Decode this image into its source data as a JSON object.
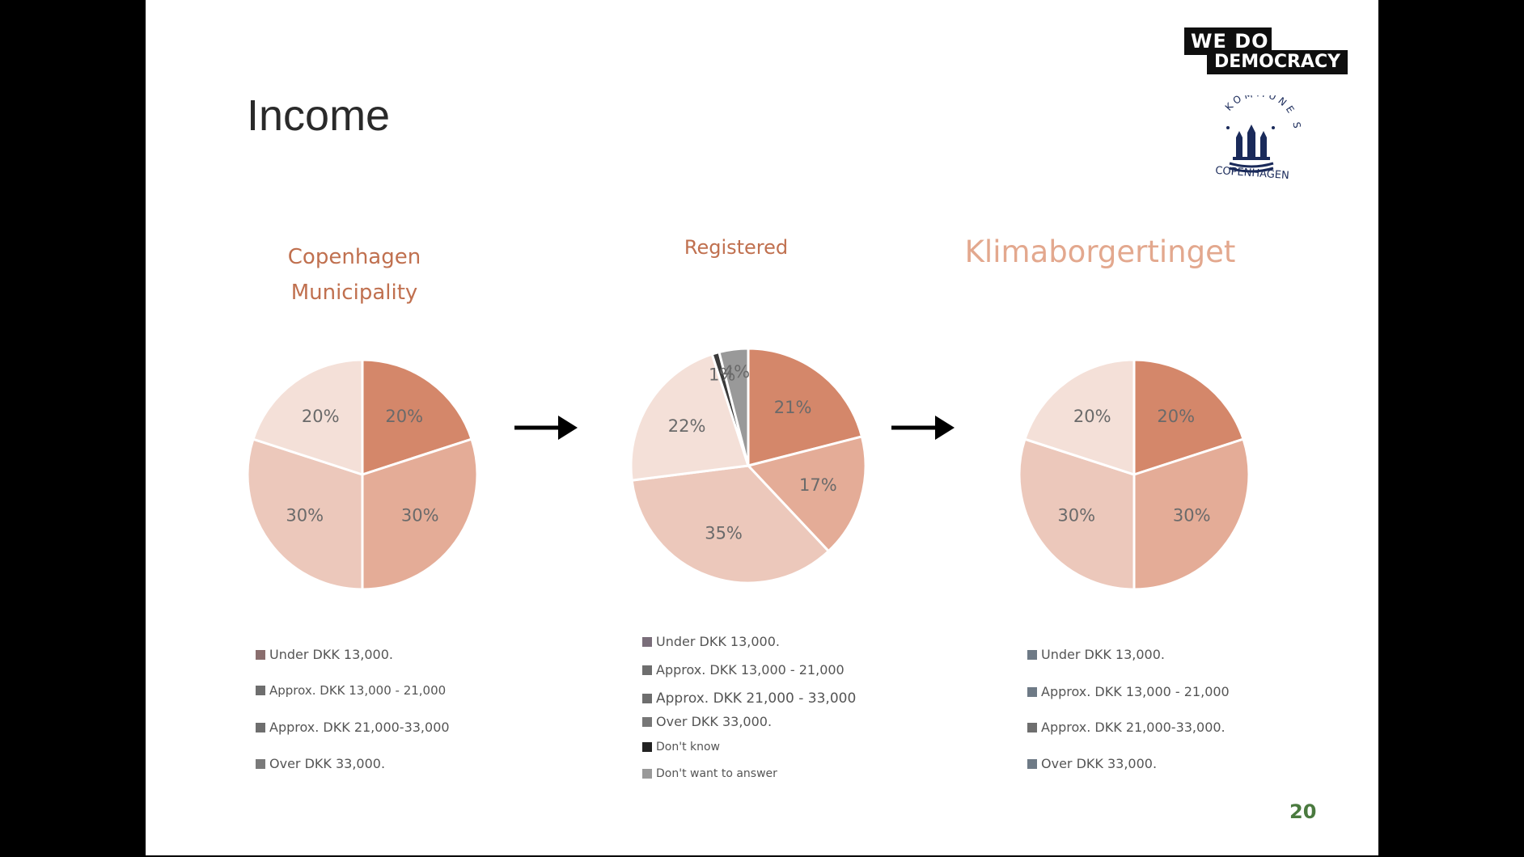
{
  "title": "Income",
  "logo": {
    "line1": "WE  DO",
    "line2": "DEMOCRACY"
  },
  "crest": {
    "arc_text": "KOMMUNE S",
    "label": "COPENHAGEN"
  },
  "page_number": "20",
  "colors": {
    "c1": "#d4876a",
    "c2": "#e4ac97",
    "c3": "#ecc8bb",
    "c4": "#f4e0d8",
    "dont_know": "#3a3a3a",
    "dont_answer": "#999999",
    "title_accent": "#c0704f",
    "page_number": "#4a7a3f"
  },
  "chart_data": [
    {
      "type": "pie",
      "title": "Copenhagen Municipality",
      "title_lines": [
        "Copenhagen",
        "Municipality"
      ],
      "categories": [
        "Under DKK 13,000.",
        "Approx. DKK 13,000 - 21,000",
        "Approx. DKK 21,000-33,000",
        "Over DKK 33,000."
      ],
      "values": [
        20,
        30,
        30,
        20
      ],
      "labels": [
        "20%",
        "30%",
        "30%",
        "20%"
      ],
      "slice_colors": [
        "#d4876a",
        "#e4ac97",
        "#ecc8bb",
        "#f4e0d8"
      ],
      "legend": [
        {
          "label": "Under DKK 13,000.",
          "swatch": "#8a6e6e"
        },
        {
          "label": "Approx. DKK 13,000 - 21,000",
          "swatch": "#6e6e6e"
        },
        {
          "label": "Approx. DKK 21,000-33,000",
          "swatch": "#6e6e6e"
        },
        {
          "label": "Over DKK 33,000.",
          "swatch": "#7a7a7a"
        }
      ]
    },
    {
      "type": "pie",
      "title": "Registered",
      "categories": [
        "Under DKK 13,000.",
        "Approx. DKK 13,000 - 21,000",
        "Approx. DKK 21,000 - 33,000",
        "Over DKK 33,000.",
        "Don't know",
        "Don't want to answer"
      ],
      "values": [
        21,
        17,
        35,
        22,
        1,
        4
      ],
      "labels": [
        "21%",
        "17%",
        "35%",
        "22%",
        "1%",
        "4%"
      ],
      "slice_colors": [
        "#d4876a",
        "#e4ac97",
        "#ecc8bb",
        "#f4e0d8",
        "#3a3a3a",
        "#999999"
      ],
      "legend": [
        {
          "label": "Under DKK 13,000.",
          "swatch": "#7a6e7a"
        },
        {
          "label": "Approx. DKK 13,000 - 21,000",
          "swatch": "#6e6e6e"
        },
        {
          "label": "Approx. DKK 21,000 - 33,000",
          "swatch": "#6e6e6e"
        },
        {
          "label": "Over DKK 33,000.",
          "swatch": "#777777"
        },
        {
          "label": "Don't know",
          "swatch": "#222222"
        },
        {
          "label": "Don't want to answer",
          "swatch": "#999999"
        }
      ]
    },
    {
      "type": "pie",
      "title": "Klimaborgertinget",
      "categories": [
        "Under DKK 13,000.",
        "Approx. DKK 13,000 - 21,000",
        "Approx. DKK 21,000-33,000.",
        "Over DKK 33,000."
      ],
      "values": [
        20,
        30,
        30,
        20
      ],
      "labels": [
        "20%",
        "30%",
        "30%",
        "20%"
      ],
      "slice_colors": [
        "#d4876a",
        "#e4ac97",
        "#ecc8bb",
        "#f4e0d8"
      ],
      "legend": [
        {
          "label": "Under DKK 13,000.",
          "swatch": "#6e7a86"
        },
        {
          "label": "Approx. DKK 13,000 - 21,000",
          "swatch": "#6e7a86"
        },
        {
          "label": "Approx. DKK 21,000-33,000.",
          "swatch": "#6e6e6e"
        },
        {
          "label": "Over DKK 33,000.",
          "swatch": "#6e7a86"
        }
      ]
    }
  ]
}
